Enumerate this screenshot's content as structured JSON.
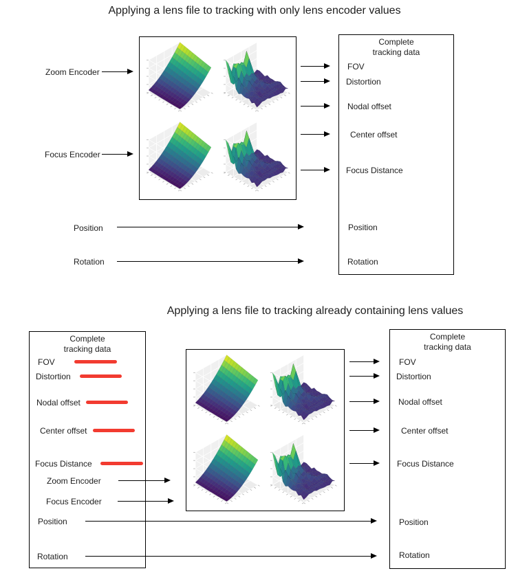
{
  "diagram_top": {
    "title": "Applying a lens file to tracking with only lens encoder values",
    "input_labels": {
      "zoom_encoder": "Zoom Encoder",
      "focus_encoder": "Focus Encoder",
      "position": "Position",
      "rotation": "Rotation"
    },
    "tracking_box": {
      "title_line1": "Complete",
      "title_line2": "tracking data",
      "items": [
        "FOV",
        "Distortion",
        "Nodal offset",
        "Center offset",
        "Focus Distance"
      ],
      "position": "Position",
      "rotation": "Rotation"
    }
  },
  "diagram_bottom": {
    "title": "Applying a lens file to tracking already containing lens values",
    "source_box": {
      "title_line1": "Complete",
      "title_line2": "tracking data",
      "replaced_items": [
        "FOV",
        "Distortion",
        "Nodal offset",
        "Center offset",
        "Focus Distance"
      ],
      "encoders": [
        "Zoom Encoder",
        "Focus Encoder"
      ],
      "position": "Position",
      "rotation": "Rotation"
    },
    "tracking_box": {
      "title_line1": "Complete",
      "title_line2": "tracking data",
      "items": [
        "FOV",
        "Distortion",
        "Nodal offset",
        "Center offset",
        "Focus Distance"
      ],
      "position": "Position",
      "rotation": "Rotation"
    }
  },
  "chart_data": {
    "type": "heatmap",
    "note": "Two identical lens-file boxes, each a 2x2 grid of 3D viridis surface plots",
    "colormap": "viridis",
    "grid": "2x2",
    "variants": [
      "smooth",
      "rugged",
      "smooth",
      "rugged"
    ]
  },
  "colors": {
    "strike_red": "#f23b30",
    "arrow": "#000000",
    "box_border": "#000000",
    "text": "#1d1d1d",
    "plot_pane": "#e9e9e9"
  }
}
